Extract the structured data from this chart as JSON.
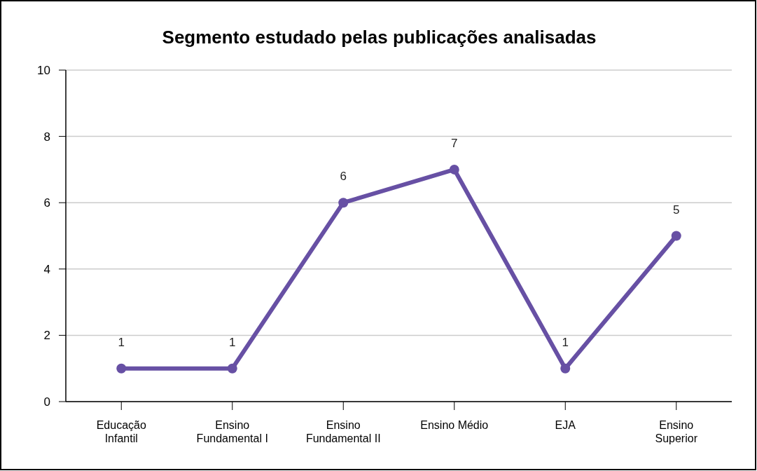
{
  "chart_data": {
    "type": "line",
    "title": "Segmento estudado pelas publicações analisadas",
    "categories": [
      "Educação Infantil",
      "Ensino Fundamental I",
      "Ensino Fundamental II",
      "Ensino Médio",
      "EJA",
      "Ensino Superior"
    ],
    "series": [
      {
        "color": "#6750a4",
        "values": [
          1,
          1,
          6,
          7,
          1,
          5
        ]
      }
    ],
    "ylim": [
      0,
      10
    ],
    "yticks": [
      0,
      2,
      4,
      6,
      8,
      10
    ],
    "grid": "y",
    "marker": "circle",
    "line_style": "solid",
    "data_labels": true
  }
}
